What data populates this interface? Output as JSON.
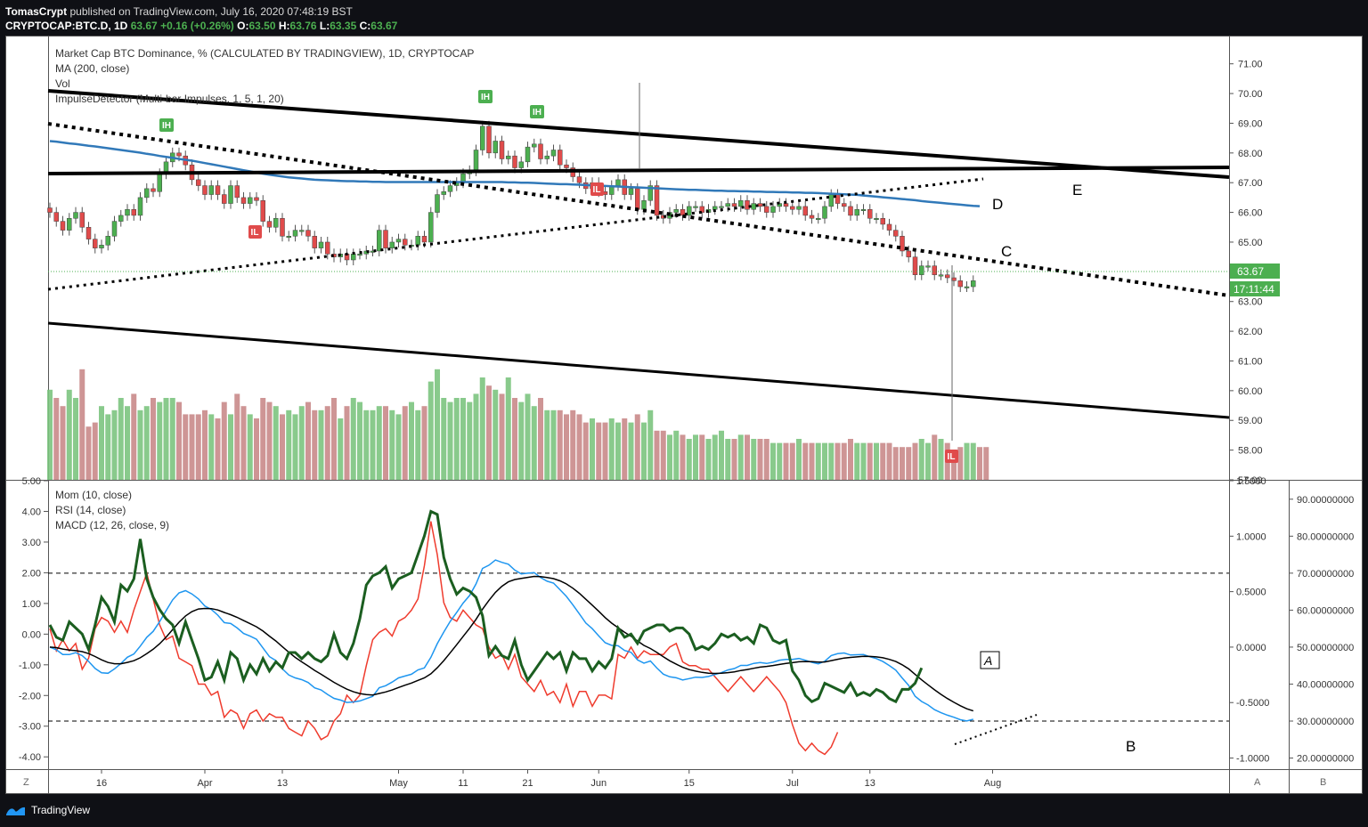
{
  "header": {
    "author": "TomasCrypt",
    "published_text": "published on TradingView.com, July 16, 2020 07:48:19 BST",
    "symbol": "CRYPTOCAP:BTC.D, 1D",
    "last": "63.67",
    "change": "+0.16 (+0.26%)",
    "o_label": "O:",
    "o": "63.50",
    "h_label": "H:",
    "h": "63.76",
    "l_label": "L:",
    "l": "63.35",
    "c_label": "C:",
    "c": "63.67"
  },
  "indicators_main": [
    "Market Cap BTC Dominance, % (CALCULATED BY TRADINGVIEW), 1D, CRYPTOCAP",
    "MA (200, close)",
    "Vol",
    "ImpulseDetector (Multi-bar Impulses, 1, 5, 1, 20)"
  ],
  "indicators_sub": [
    "Mom (10, close)",
    "RSI (14, close)",
    "MACD (12, 26, close, 9)"
  ],
  "price_badge": "63.67",
  "timer_badge": "17:11:44",
  "annotations": {
    "A": "A",
    "B": "B",
    "C": "C",
    "D": "D",
    "E": "E"
  },
  "markers": {
    "ih": "IH",
    "il": "IL"
  },
  "footer": {
    "logo": "TradingView",
    "z": "Z",
    "a": "A",
    "b": "B"
  },
  "colors": {
    "up": "#4caf50",
    "down": "#e04b4b",
    "ma": "#3179b9",
    "mom": "#1b5e20",
    "rsi": "#ef3b2d",
    "macd": "#1e96f0",
    "signal": "#000000"
  },
  "chart_data": {
    "type": "candlestick",
    "x_ticks": [
      "16",
      "Apr",
      "13",
      "May",
      "11",
      "21",
      "Jun",
      "15",
      "Jul",
      "13",
      "Aug"
    ],
    "x_tick_dates": [
      "2020-03-16",
      "2020-04-01",
      "2020-04-13",
      "2020-05-01",
      "2020-05-11",
      "2020-05-21",
      "2020-06-01",
      "2020-06-15",
      "2020-07-01",
      "2020-07-13",
      "2020-08-01"
    ],
    "price_axis": {
      "ticks": [
        "71.00",
        "70.00",
        "69.00",
        "68.00",
        "67.00",
        "66.00",
        "65.00",
        "64.00",
        "63.00",
        "62.00",
        "61.00",
        "60.00",
        "59.00",
        "58.00",
        "57.00"
      ],
      "range": [
        57,
        71.5
      ]
    },
    "mom_axis": {
      "ticks": [
        "5.00",
        "4.00",
        "3.00",
        "2.00",
        "1.00",
        "0.00",
        "-1.00",
        "-2.00",
        "-3.00",
        "-4.00"
      ],
      "range": [
        -4.4,
        5.0
      ]
    },
    "macd_axis": {
      "ticks": [
        "1.5000",
        "1.0000",
        "0.5000",
        "0.0000",
        "-0.5000",
        "-1.0000"
      ],
      "range": [
        -1.1,
        1.5
      ]
    },
    "rsi_axis": {
      "ticks": [
        "90.00000000",
        "80.00000000",
        "70.00000000",
        "60.00000000",
        "50.00000000",
        "40.00000000",
        "30.00000000",
        "20.00000000"
      ],
      "range": [
        17,
        95
      ]
    },
    "rsi_bands": [
      70,
      30
    ],
    "closes": [
      66.0,
      65.7,
      65.4,
      65.8,
      66.0,
      65.5,
      65.1,
      64.8,
      64.9,
      65.2,
      65.7,
      65.9,
      66.1,
      65.9,
      66.5,
      66.8,
      66.7,
      67.3,
      67.7,
      68.0,
      67.9,
      67.6,
      67.1,
      66.9,
      66.6,
      66.9,
      66.6,
      66.3,
      66.9,
      66.5,
      66.3,
      66.5,
      66.4,
      65.7,
      65.5,
      65.8,
      65.2,
      65.2,
      65.4,
      65.4,
      65.2,
      64.8,
      65.0,
      64.6,
      64.5,
      64.6,
      64.4,
      64.6,
      64.6,
      64.7,
      64.7,
      65.4,
      64.8,
      65.0,
      65.1,
      64.9,
      64.9,
      65.2,
      65.0,
      66.0,
      66.6,
      66.7,
      66.9,
      67.0,
      67.3,
      67.4,
      68.1,
      68.9,
      68.0,
      68.4,
      67.8,
      67.9,
      67.5,
      67.7,
      68.2,
      68.3,
      67.8,
      67.9,
      68.1,
      67.6,
      67.5,
      67.2,
      67.0,
      66.8,
      67.0,
      66.7,
      66.6,
      66.9,
      67.1,
      66.6,
      66.8,
      66.1,
      66.4,
      66.9,
      65.9,
      65.8,
      66.0,
      66.1,
      65.9,
      66.2,
      66.2,
      66.0,
      66.1,
      66.2,
      66.2,
      66.3,
      66.2,
      66.4,
      66.1,
      66.3,
      66.2,
      66.0,
      66.2,
      66.3,
      66.2,
      66.1,
      66.2,
      65.9,
      65.8,
      65.8,
      66.2,
      66.6,
      66.3,
      66.2,
      65.9,
      66.1,
      66.1,
      65.8,
      65.8,
      65.6,
      65.4,
      65.2,
      64.7,
      64.5,
      63.9,
      64.2,
      64.2,
      63.9,
      63.9,
      63.8,
      63.7,
      63.5,
      63.5,
      63.7
    ],
    "ma200": [
      68.4,
      68.38,
      68.35,
      68.32,
      68.3,
      68.27,
      68.24,
      68.22,
      68.19,
      68.16,
      68.13,
      68.1,
      68.07,
      68.04,
      68.01,
      67.97,
      67.94,
      67.9,
      67.87,
      67.84,
      67.8,
      67.77,
      67.74,
      67.7,
      67.66,
      67.62,
      67.58,
      67.54,
      67.5,
      67.46,
      67.42,
      67.38,
      67.34,
      67.3,
      67.27,
      67.24,
      67.21,
      67.18,
      67.16,
      67.14,
      67.12,
      67.1,
      67.09,
      67.08,
      67.07,
      67.06,
      67.05,
      67.05,
      67.04,
      67.04,
      67.03,
      67.03,
      67.02,
      67.02,
      67.02,
      67.02,
      67.02,
      67.02,
      67.02,
      67.02,
      67.02,
      67.02,
      67.02,
      67.02,
      67.02,
      67.02,
      67.02,
      67.02,
      67.02,
      67.02,
      67.02,
      67.01,
      67.01,
      67.0,
      67.0,
      66.99,
      66.98,
      66.97,
      66.96,
      66.95,
      66.95,
      66.94,
      66.93,
      66.92,
      66.91,
      66.9,
      66.89,
      66.88,
      66.87,
      66.86,
      66.85,
      66.84,
      66.83,
      66.82,
      66.81,
      66.8,
      66.79,
      66.78,
      66.77,
      66.76,
      66.76,
      66.75,
      66.74,
      66.73,
      66.73,
      66.72,
      66.72,
      66.71,
      66.71,
      66.7,
      66.7,
      66.69,
      66.69,
      66.68,
      66.68,
      66.67,
      66.67,
      66.66,
      66.66,
      66.65,
      66.64,
      66.63,
      66.62,
      66.61,
      66.6,
      66.59,
      66.57,
      66.55,
      66.53,
      66.51,
      66.49,
      66.47,
      66.45,
      66.43,
      66.41,
      66.38,
      66.36,
      66.34,
      66.32,
      66.3,
      66.28,
      66.26,
      66.24,
      66.22,
      66.21
    ],
    "volume": [
      1.1,
      1.0,
      0.9,
      1.1,
      1.0,
      1.35,
      0.65,
      0.7,
      0.9,
      0.8,
      0.85,
      1.0,
      0.9,
      1.05,
      0.85,
      0.9,
      1.0,
      0.95,
      1.0,
      1.0,
      0.95,
      0.8,
      0.8,
      0.8,
      0.85,
      0.8,
      0.75,
      0.95,
      0.8,
      1.05,
      0.9,
      0.8,
      0.75,
      1.0,
      0.95,
      0.9,
      0.8,
      0.85,
      0.8,
      0.9,
      0.95,
      0.85,
      0.85,
      0.9,
      1.0,
      0.75,
      0.9,
      1.0,
      0.95,
      0.85,
      0.85,
      0.9,
      0.9,
      0.85,
      0.8,
      0.9,
      0.95,
      0.85,
      0.9,
      1.2,
      1.35,
      1.0,
      0.95,
      1.0,
      1.0,
      0.95,
      1.05,
      1.25,
      1.15,
      1.1,
      1.05,
      1.25,
      1.0,
      0.95,
      1.05,
      0.9,
      1.0,
      0.85,
      0.85,
      0.85,
      0.8,
      0.85,
      0.8,
      0.7,
      0.75,
      0.7,
      0.7,
      0.75,
      0.7,
      0.75,
      0.7,
      0.8,
      0.7,
      0.85,
      0.6,
      0.6,
      0.55,
      0.6,
      0.55,
      0.5,
      0.55,
      0.55,
      0.5,
      0.55,
      0.6,
      0.5,
      0.5,
      0.55,
      0.55,
      0.5,
      0.5,
      0.5,
      0.45,
      0.45,
      0.45,
      0.45,
      0.5,
      0.45,
      0.45,
      0.45,
      0.45,
      0.45,
      0.45,
      0.45,
      0.5,
      0.45,
      0.45,
      0.45,
      0.45,
      0.45,
      0.45,
      0.4,
      0.4,
      0.4,
      0.45,
      0.5,
      0.45,
      0.55,
      0.5,
      0.45,
      0.35,
      0.4,
      0.45,
      0.45,
      0.4,
      0.4
    ],
    "mom": [
      0.3,
      -0.1,
      -0.2,
      0.4,
      0.2,
      0.0,
      -0.5,
      0.3,
      1.2,
      0.9,
      0.4,
      1.6,
      1.4,
      1.8,
      3.1,
      1.8,
      1.2,
      0.8,
      0.5,
      0.3,
      -0.3,
      0.4,
      -0.2,
      -0.8,
      -1.5,
      -1.4,
      -0.9,
      -1.5,
      -0.6,
      -0.8,
      -1.5,
      -1.0,
      -1.3,
      -0.8,
      -1.2,
      -0.9,
      -1.1,
      -0.6,
      -0.6,
      -0.8,
      -0.6,
      -0.8,
      -0.9,
      -0.7,
      0.0,
      -0.6,
      -0.8,
      -0.3,
      0.5,
      1.6,
      1.9,
      2.0,
      2.2,
      1.5,
      1.8,
      1.9,
      2.0,
      2.6,
      3.2,
      4.0,
      3.9,
      2.5,
      1.8,
      1.3,
      1.5,
      1.4,
      1.2,
      0.6,
      -0.7,
      -0.4,
      -0.7,
      -0.8,
      -0.2,
      -1.0,
      -1.5,
      -1.2,
      -0.9,
      -0.6,
      -0.8,
      -0.6,
      -1.2,
      -0.6,
      -0.8,
      -0.8,
      -1.2,
      -0.9,
      -1.1,
      -0.8,
      0.2,
      -0.1,
      0.0,
      -0.3,
      0.1,
      0.2,
      0.3,
      0.3,
      0.1,
      0.2,
      0.2,
      0.0,
      -0.5,
      -0.4,
      -0.5,
      -0.3,
      0.0,
      -0.1,
      0.0,
      -0.2,
      -0.1,
      -0.3,
      0.3,
      0.2,
      -0.2,
      -0.3,
      -0.2,
      -1.2,
      -1.5,
      -2.0,
      -2.2,
      -2.1,
      -1.6,
      -1.7,
      -1.8,
      -1.9,
      -1.6,
      -2.0,
      -1.9,
      -2.0,
      -1.8,
      -1.9,
      -2.1,
      -2.2,
      -1.8,
      -1.8,
      -1.6,
      -1.1
    ],
    "rsi": [
      55,
      49,
      52,
      49,
      51,
      44,
      47,
      55,
      58,
      57,
      54,
      57,
      54,
      60,
      65,
      70,
      63,
      56,
      52,
      53,
      47,
      46,
      45,
      40,
      40,
      37,
      38,
      31,
      33,
      32,
      28,
      32,
      33,
      30,
      32,
      31,
      31,
      28,
      27,
      26,
      30,
      28,
      25,
      26,
      30,
      32,
      37,
      35,
      37,
      45,
      52,
      54,
      55,
      53,
      57,
      58,
      60,
      63,
      72,
      84,
      75,
      62,
      58,
      57,
      60,
      58,
      56,
      55,
      50,
      47,
      48,
      44,
      48,
      42,
      40,
      38,
      41,
      37,
      38,
      35,
      40,
      34,
      38,
      38,
      34,
      37,
      37,
      36,
      48,
      47,
      50,
      47,
      49,
      48,
      48,
      48,
      50,
      51,
      46,
      45,
      45,
      44,
      44,
      42,
      40,
      38,
      40,
      42,
      40,
      38,
      40,
      42,
      40,
      38,
      35,
      29,
      24,
      22,
      24,
      22,
      21,
      23,
      27
    ]
  }
}
